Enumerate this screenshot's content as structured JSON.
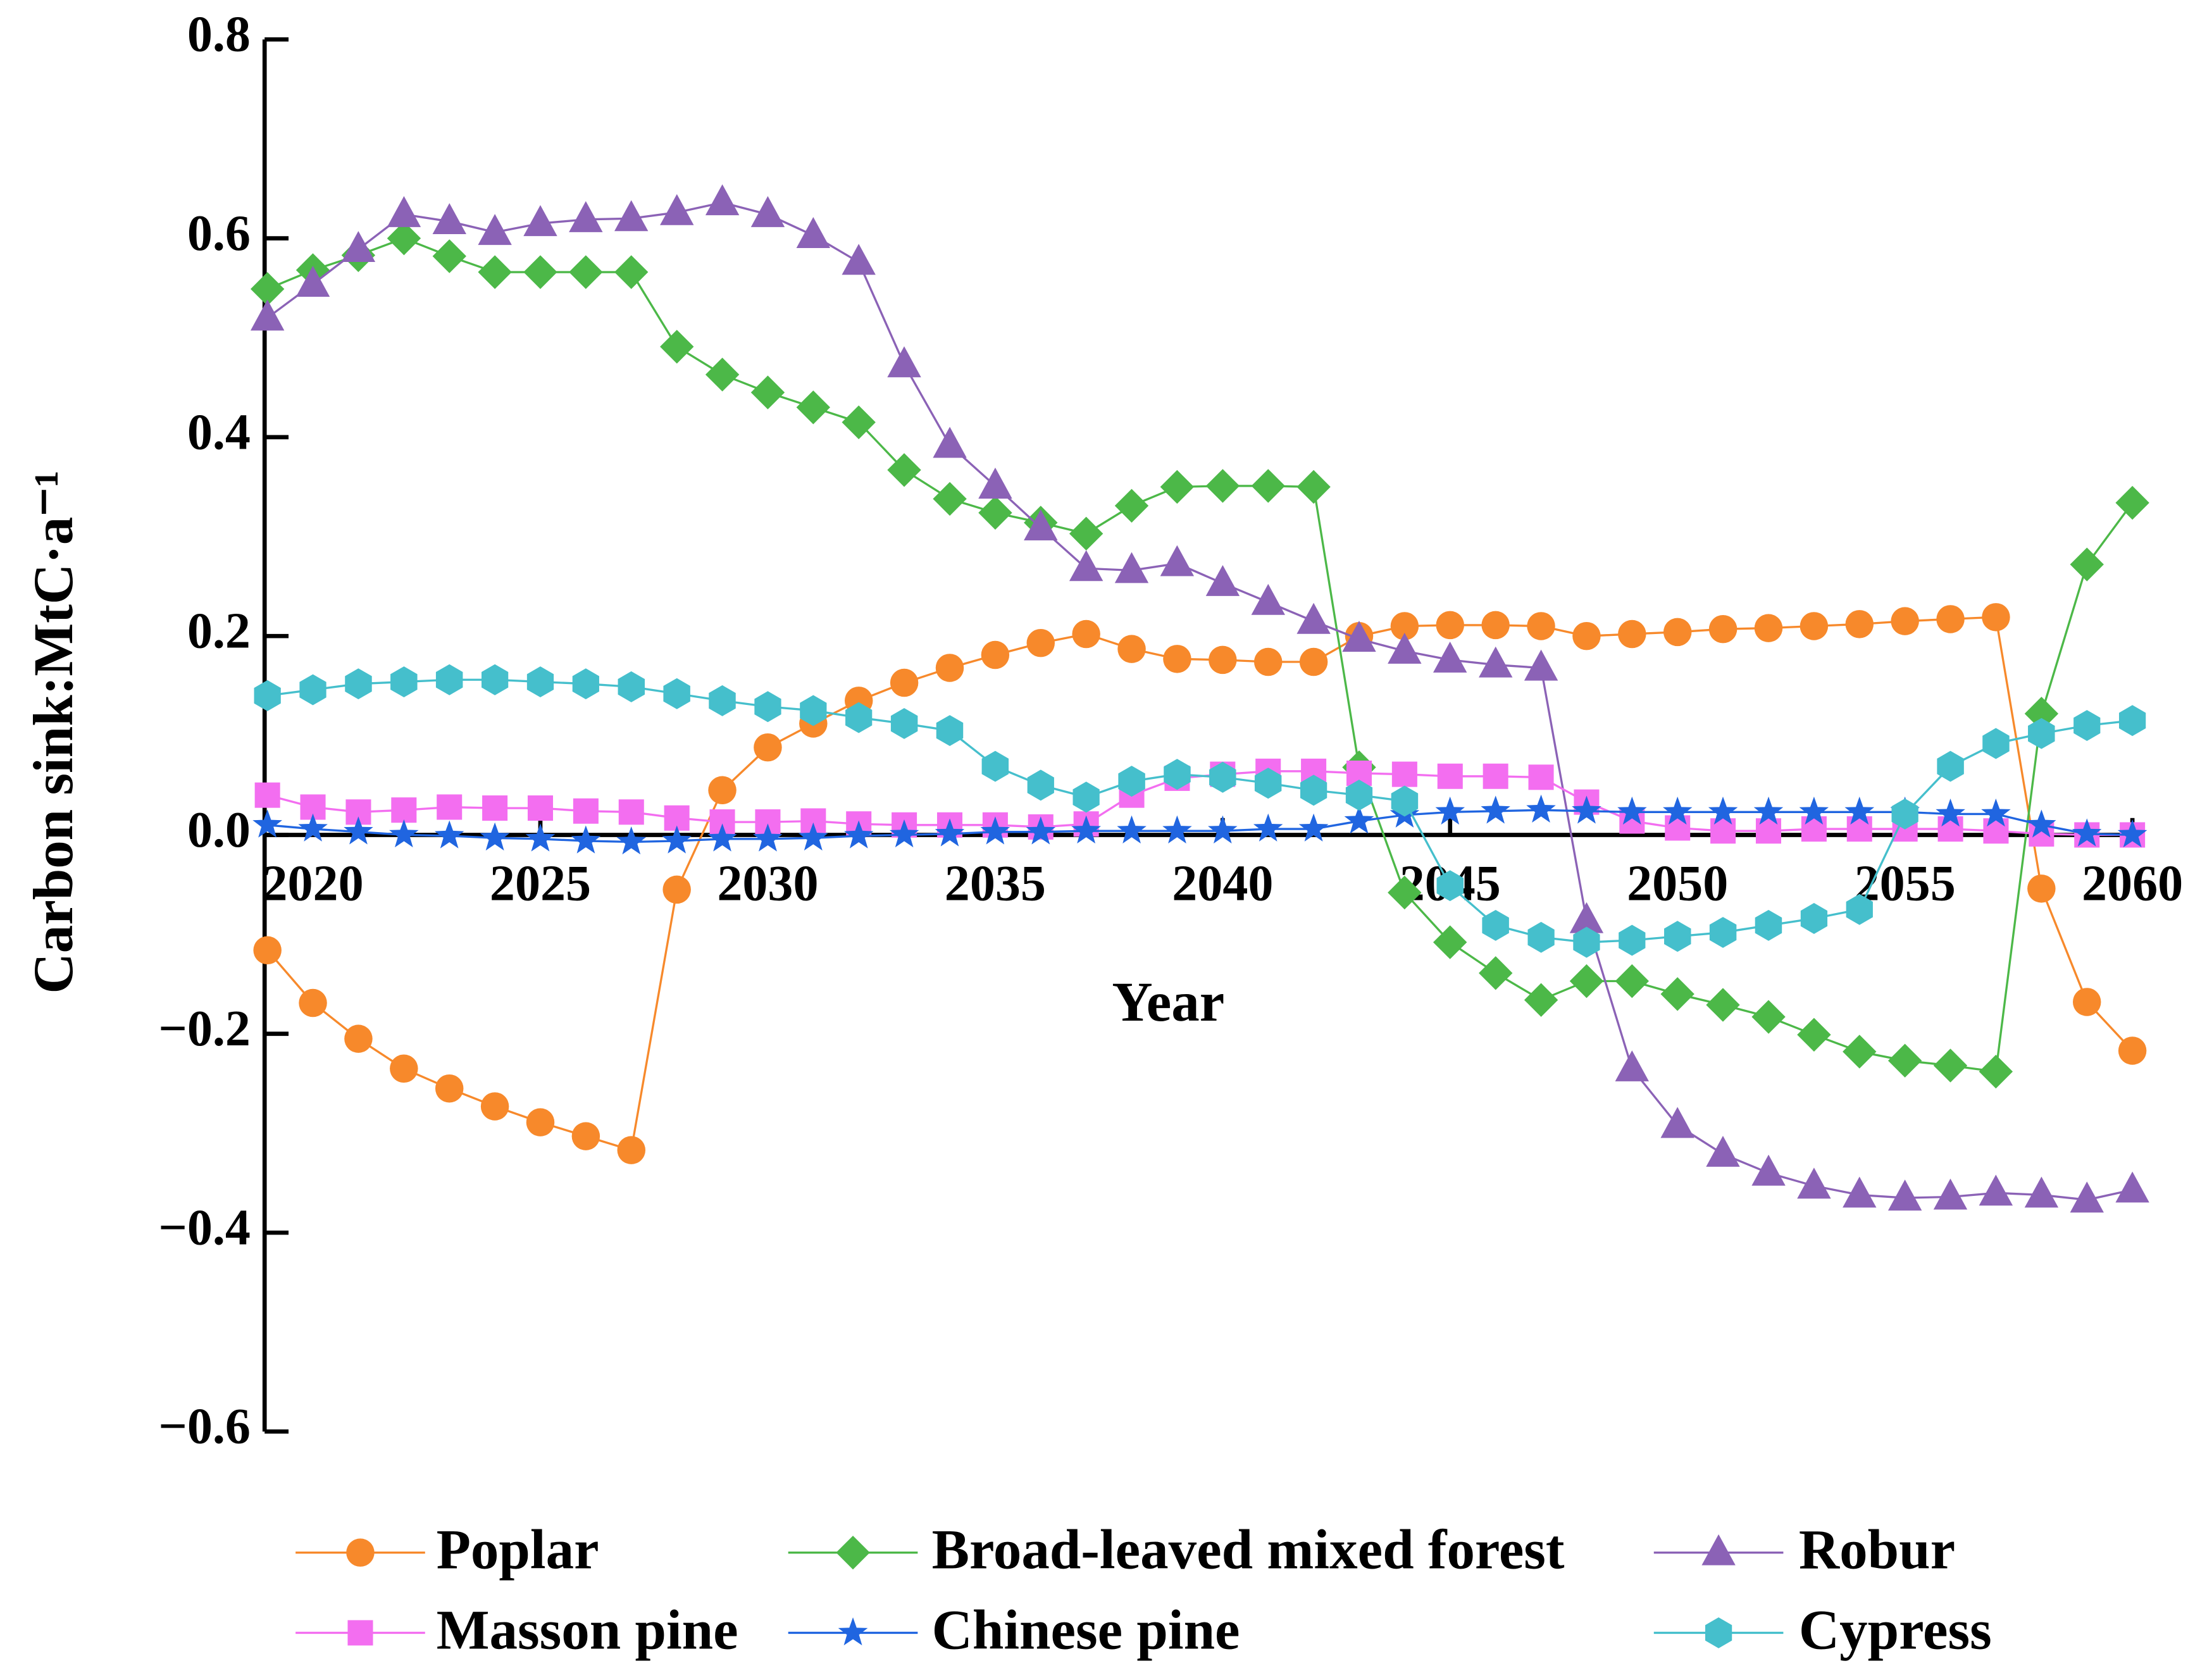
{
  "chart_data": {
    "type": "line",
    "x_label": "Year",
    "y_label": "Carbon sink:MtC·a⁻¹",
    "x": [
      2019,
      2020,
      2021,
      2022,
      2023,
      2024,
      2025,
      2026,
      2027,
      2028,
      2029,
      2030,
      2031,
      2032,
      2033,
      2034,
      2035,
      2036,
      2037,
      2038,
      2039,
      2040,
      2041,
      2042,
      2043,
      2044,
      2045,
      2046,
      2047,
      2048,
      2049,
      2050,
      2051,
      2052,
      2053,
      2054,
      2055,
      2056,
      2057,
      2058,
      2059,
      2060
    ],
    "xlim": [
      2019,
      2060
    ],
    "xticks": [
      2020,
      2025,
      2030,
      2035,
      2040,
      2045,
      2050,
      2055,
      2060
    ],
    "ylim": [
      -0.6,
      0.8
    ],
    "yticks": [
      {
        "value": -0.6,
        "label": "−0.6"
      },
      {
        "value": -0.4,
        "label": "−0.4"
      },
      {
        "value": -0.2,
        "label": "−0.2"
      },
      {
        "value": 0,
        "label": "0.0"
      },
      0.2,
      0.4,
      0.6,
      0.8
    ],
    "legend": "bottom",
    "series": [
      {
        "name": "Poplar",
        "color": "#f7892b",
        "marker": "circle",
        "values": [
          -0.116,
          -0.169,
          -0.205,
          -0.235,
          -0.255,
          -0.273,
          -0.289,
          -0.303,
          -0.317,
          -0.055,
          0.045,
          0.088,
          0.112,
          0.135,
          0.153,
          0.168,
          0.181,
          0.193,
          0.202,
          0.187,
          0.177,
          0.176,
          0.174,
          0.174,
          0.2,
          0.21,
          0.211,
          0.211,
          0.21,
          0.2,
          0.202,
          0.204,
          0.207,
          0.208,
          0.21,
          0.212,
          0.215,
          0.217,
          0.219,
          -0.054,
          -0.168,
          -0.217
        ]
      },
      {
        "name": "Broad-leaved mixed forest",
        "color": "#4cb848",
        "marker": "diamond",
        "values": [
          0.549,
          0.568,
          0.583,
          0.6,
          0.582,
          0.566,
          0.566,
          0.566,
          0.566,
          0.491,
          0.463,
          0.445,
          0.43,
          0.415,
          0.367,
          0.338,
          0.324,
          0.314,
          0.303,
          0.331,
          0.35,
          0.351,
          0.351,
          0.35,
          0.068,
          -0.058,
          -0.108,
          -0.139,
          -0.166,
          -0.147,
          -0.147,
          -0.16,
          -0.171,
          -0.183,
          -0.201,
          -0.218,
          -0.227,
          -0.232,
          -0.238,
          0.122,
          0.272,
          0.334
        ]
      },
      {
        "name": "Robur",
        "color": "#8b62b6",
        "marker": "triangle",
        "values": [
          0.52,
          0.554,
          0.589,
          0.624,
          0.617,
          0.606,
          0.615,
          0.619,
          0.62,
          0.626,
          0.636,
          0.624,
          0.603,
          0.576,
          0.473,
          0.392,
          0.351,
          0.309,
          0.268,
          0.266,
          0.273,
          0.253,
          0.234,
          0.215,
          0.197,
          0.185,
          0.176,
          0.171,
          0.168,
          -0.086,
          -0.235,
          -0.292,
          -0.321,
          -0.34,
          -0.353,
          -0.362,
          -0.365,
          -0.364,
          -0.36,
          -0.362,
          -0.367,
          -0.357
        ]
      },
      {
        "name": "Masson pine",
        "color": "#f36ef0",
        "marker": "square",
        "values": [
          0.04,
          0.028,
          0.023,
          0.025,
          0.028,
          0.027,
          0.027,
          0.024,
          0.023,
          0.017,
          0.013,
          0.013,
          0.014,
          0.011,
          0.01,
          0.01,
          0.01,
          0.008,
          0.011,
          0.04,
          0.057,
          0.061,
          0.064,
          0.064,
          0.062,
          0.061,
          0.059,
          0.059,
          0.058,
          0.033,
          0.014,
          0.007,
          0.004,
          0.004,
          0.006,
          0.006,
          0.006,
          0.006,
          0.004,
          0.001,
          0,
          0
        ]
      },
      {
        "name": "Chinese pine",
        "color": "#2065e0",
        "marker": "star",
        "values": [
          0.01,
          0.006,
          0.003,
          0,
          -0.001,
          -0.003,
          -0.004,
          -0.006,
          -0.007,
          -0.006,
          -0.004,
          -0.004,
          -0.003,
          -0.001,
          0,
          0.001,
          0.003,
          0.003,
          0.004,
          0.004,
          0.004,
          0.004,
          0.006,
          0.006,
          0.014,
          0.02,
          0.023,
          0.024,
          0.025,
          0.024,
          0.023,
          0.023,
          0.023,
          0.023,
          0.023,
          0.023,
          0.023,
          0.021,
          0.021,
          0.01,
          0.001,
          0
        ]
      },
      {
        "name": "Cypress",
        "color": "#45bfcc",
        "marker": "hexagon",
        "values": [
          0.14,
          0.146,
          0.152,
          0.154,
          0.156,
          0.156,
          0.154,
          0.152,
          0.149,
          0.142,
          0.135,
          0.129,
          0.125,
          0.118,
          0.112,
          0.105,
          0.069,
          0.05,
          0.038,
          0.054,
          0.061,
          0.058,
          0.052,
          0.045,
          0.04,
          0.034,
          -0.051,
          -0.091,
          -0.103,
          -0.108,
          -0.106,
          -0.102,
          -0.098,
          -0.091,
          -0.084,
          -0.075,
          0.021,
          0.069,
          0.092,
          0.102,
          0.11,
          0.115
        ]
      }
    ]
  }
}
